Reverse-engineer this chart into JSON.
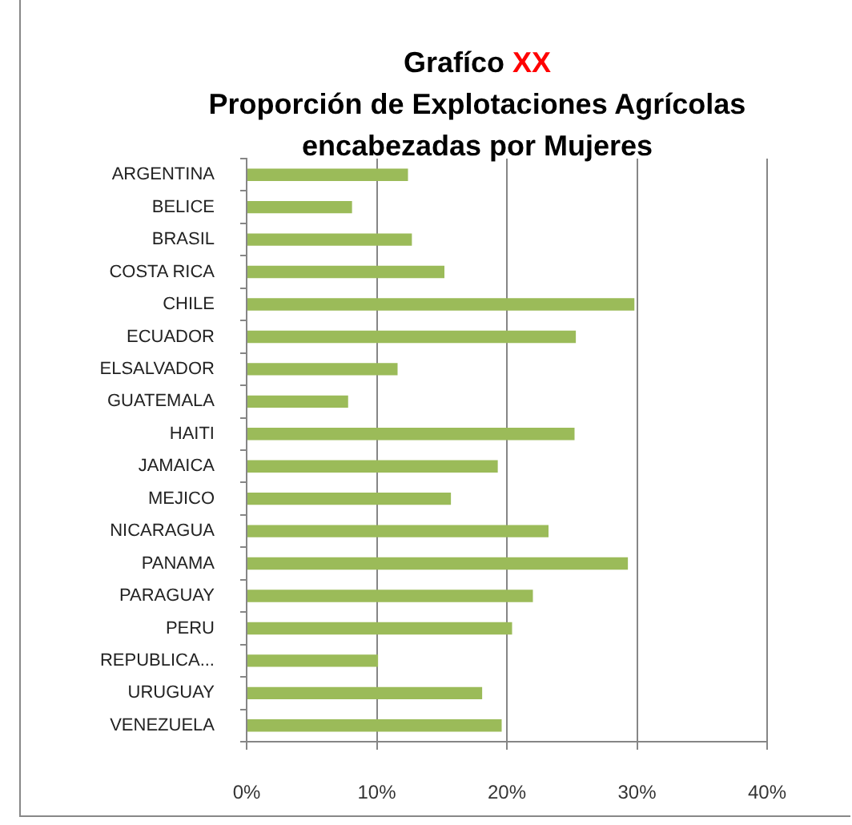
{
  "chart_data": {
    "type": "bar",
    "orientation": "horizontal",
    "title": "Grafíco XX",
    "subtitle": "Proporción de Explotaciones Agrícolas encabezadas por Mujeres",
    "categories": [
      "ARGENTINA",
      "BELICE",
      "BRASIL",
      "COSTA RICA",
      "CHILE",
      "ECUADOR",
      "ELSALVADOR",
      "GUATEMALA",
      "HAITI",
      "JAMAICA",
      "MEJICO",
      "NICARAGUA",
      "PANAMA",
      "PARAGUAY",
      "PERU",
      "REPUBLICA...",
      "URUGUAY",
      "VENEZUELA"
    ],
    "values": [
      12.4,
      8.1,
      12.7,
      15.2,
      29.8,
      25.3,
      11.6,
      7.8,
      25.2,
      19.3,
      15.7,
      23.2,
      29.3,
      22.0,
      20.4,
      10.1,
      18.1,
      19.6
    ],
    "color": "#9bbb59",
    "xlim": [
      0,
      40
    ],
    "xticks": [
      {
        "value": 0,
        "label": "0%"
      },
      {
        "value": 10,
        "label": "10%"
      },
      {
        "value": 20,
        "label": "20%"
      },
      {
        "value": 30,
        "label": "30%"
      },
      {
        "value": 40,
        "label": "40%"
      }
    ],
    "grid": "x"
  }
}
